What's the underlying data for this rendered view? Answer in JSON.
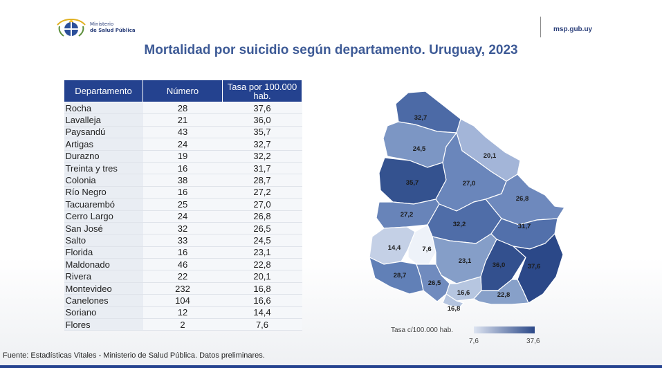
{
  "header": {
    "ministry_line1": "Ministerio",
    "ministry_line2": "de Salud Pública",
    "site": "msp.gub.uy",
    "logo_icon": "uruguay-coat-of-arms-icon"
  },
  "title": "Mortalidad por suicidio según departamento. Uruguay, 2023",
  "table": {
    "headers": [
      "Departamento",
      "Número",
      "Tasa por 100.000 hab."
    ],
    "rows": [
      {
        "dep": "Rocha",
        "num": "28",
        "rate": "37,6"
      },
      {
        "dep": "Lavalleja",
        "num": "21",
        "rate": "36,0"
      },
      {
        "dep": "Paysandú",
        "num": "43",
        "rate": "35,7"
      },
      {
        "dep": "Artigas",
        "num": "24",
        "rate": "32,7"
      },
      {
        "dep": "Durazno",
        "num": "19",
        "rate": "32,2"
      },
      {
        "dep": "Treinta y tres",
        "num": "16",
        "rate": "31,7"
      },
      {
        "dep": "Colonia",
        "num": "38",
        "rate": "28,7"
      },
      {
        "dep": "Río Negro",
        "num": "16",
        "rate": "27,2"
      },
      {
        "dep": "Tacuarembó",
        "num": "25",
        "rate": "27,0"
      },
      {
        "dep": "Cerro Largo",
        "num": "24",
        "rate": "26,8"
      },
      {
        "dep": "San José",
        "num": "32",
        "rate": "26,5"
      },
      {
        "dep": "Salto",
        "num": "33",
        "rate": "24,5"
      },
      {
        "dep": "Florida",
        "num": "16",
        "rate": "23,1"
      },
      {
        "dep": "Maldonado",
        "num": "46",
        "rate": "22,8"
      },
      {
        "dep": "Rivera",
        "num": "22",
        "rate": "20,1"
      },
      {
        "dep": "Montevideo",
        "num": "232",
        "rate": "16,8"
      },
      {
        "dep": "Canelones",
        "num": "104",
        "rate": "16,6"
      },
      {
        "dep": "Soriano",
        "num": "12",
        "rate": "14,4"
      },
      {
        "dep": "Flores",
        "num": "2",
        "rate": "7,6"
      }
    ]
  },
  "map": {
    "regions": [
      {
        "id": "artigas",
        "label": "32,7",
        "color": "#4c6aa6"
      },
      {
        "id": "salto",
        "label": "24,5",
        "color": "#7c96c4"
      },
      {
        "id": "rivera",
        "label": "20,1",
        "color": "#a3b5d8"
      },
      {
        "id": "paysandu",
        "label": "35,7",
        "color": "#34528f"
      },
      {
        "id": "tacuarembo",
        "label": "27,0",
        "color": "#6a86bb"
      },
      {
        "id": "cerro-largo",
        "label": "26,8",
        "color": "#6e89bd"
      },
      {
        "id": "rio-negro",
        "label": "27,2",
        "color": "#6884b9"
      },
      {
        "id": "durazno",
        "label": "32,2",
        "color": "#4f6da8"
      },
      {
        "id": "treinta-y-tres",
        "label": "31,7",
        "color": "#5270ab"
      },
      {
        "id": "soriano",
        "label": "14,4",
        "color": "#c4d0e6"
      },
      {
        "id": "flores",
        "label": "7,6",
        "color": "#eef2f9"
      },
      {
        "id": "florida",
        "label": "23,1",
        "color": "#859ec8"
      },
      {
        "id": "lavalleja",
        "label": "36,0",
        "color": "#33508e"
      },
      {
        "id": "rocha",
        "label": "37,6",
        "color": "#2b4888"
      },
      {
        "id": "colonia",
        "label": "28,7",
        "color": "#6180b7"
      },
      {
        "id": "san-jose",
        "label": "26,5",
        "color": "#708bbe"
      },
      {
        "id": "canelones",
        "label": "16,6",
        "color": "#b6c6e0"
      },
      {
        "id": "maldonado",
        "label": "22,8",
        "color": "#87a0c9"
      },
      {
        "id": "montevideo",
        "label": "16,8",
        "color": "#b4c4df"
      }
    ],
    "legend": {
      "label": "Tasa c/100.000 hab.",
      "min": "7,6",
      "max": "37,6"
    }
  },
  "footer": "Fuente: Estadísticas Vitales - Ministerio de Salud Pública. Datos preliminares."
}
